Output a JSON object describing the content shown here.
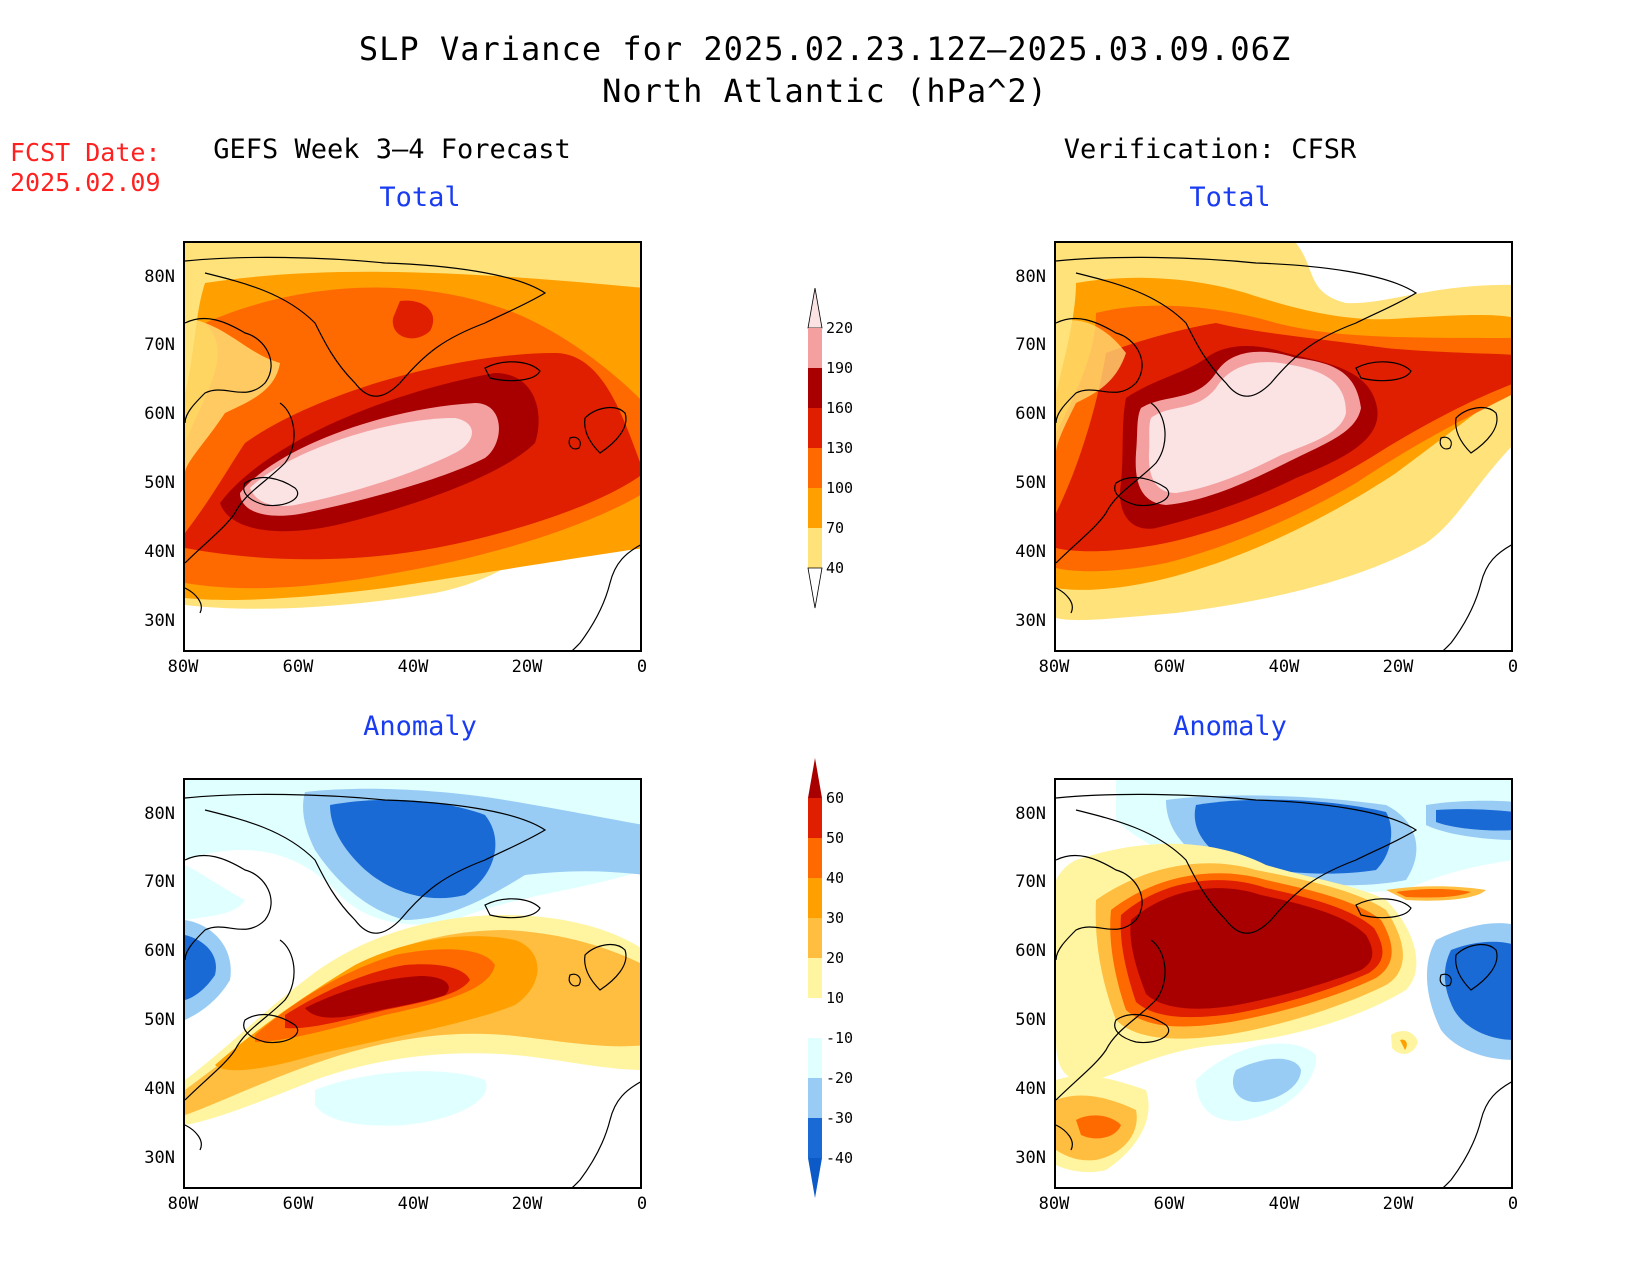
{
  "title_line1": "SLP Variance for 2025.02.23.12Z–2025.03.09.06Z",
  "title_line2": "North Atlantic (hPa^2)",
  "fcst_label": "FCST Date:",
  "fcst_date": "2025.02.09",
  "left_column": "GEFS Week 3–4 Forecast",
  "right_column": "Verification: CFSR",
  "panels": {
    "total_left": "Total",
    "total_right": "Total",
    "anom_left": "Anomaly",
    "anom_right": "Anomaly"
  },
  "lat_labels": [
    "80N",
    "70N",
    "60N",
    "50N",
    "40N",
    "30N"
  ],
  "lon_labels": [
    "80W",
    "60W",
    "40W",
    "20W",
    "0"
  ],
  "total_colorbar": {
    "levels": [
      "220",
      "190",
      "160",
      "130",
      "100",
      "70",
      "40"
    ],
    "colors": [
      "#fbe3e3",
      "#f4a0a0",
      "#a80000",
      "#e01e00",
      "#ff6a00",
      "#ffa000",
      "#ffe27a"
    ]
  },
  "anomaly_colorbar": {
    "levels": [
      "60",
      "50",
      "40",
      "30",
      "20",
      "10",
      "-10",
      "-20",
      "-30",
      "-40"
    ],
    "colors": [
      "#a80000",
      "#e01e00",
      "#ff6a00",
      "#ffa000",
      "#ffbe40",
      "#fff5a0",
      "#ffffff",
      "#e0ffff",
      "#98ccf5",
      "#1a6ad6",
      "#0b5ac8"
    ]
  }
}
